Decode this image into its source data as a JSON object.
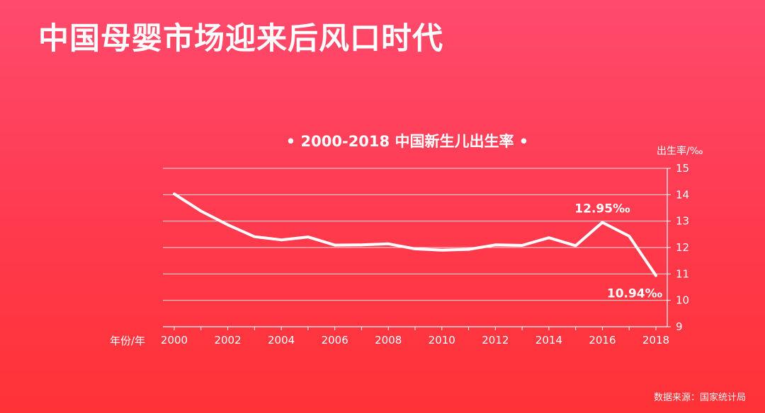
{
  "page": {
    "title": "中国母婴市场迎来后风口时代",
    "source": "数据来源：国家统计局"
  },
  "chart_data": {
    "type": "line",
    "title": "• 2000-2018 中国新生儿出生率 •",
    "xlabel": "年份/年",
    "ylabel": "出生率/‰",
    "ylim": [
      9,
      15
    ],
    "xlim": [
      2000,
      2018
    ],
    "grid": true,
    "x": [
      2000,
      2001,
      2002,
      2003,
      2004,
      2005,
      2006,
      2007,
      2008,
      2009,
      2010,
      2011,
      2012,
      2013,
      2014,
      2015,
      2016,
      2017,
      2018
    ],
    "series": [
      {
        "values": [
          14.03,
          13.38,
          12.86,
          12.41,
          12.29,
          12.4,
          12.09,
          12.1,
          12.14,
          11.95,
          11.9,
          11.93,
          12.1,
          12.08,
          12.37,
          12.07,
          12.95,
          12.43,
          10.94
        ]
      }
    ],
    "x_ticks": [
      2000,
      2002,
      2004,
      2006,
      2008,
      2010,
      2012,
      2014,
      2016,
      2018
    ],
    "y_ticks": [
      9,
      10,
      11,
      12,
      13,
      14,
      15
    ],
    "annotations": [
      {
        "x": 2016,
        "y": 12.95,
        "text": "12.95‰",
        "position": "above"
      },
      {
        "x": 2018,
        "y": 10.94,
        "text": "10.94‰",
        "position": "below"
      }
    ],
    "colors": {
      "line": "#ffffff",
      "grid": "#ffffff",
      "background": "#ff3e52"
    }
  }
}
